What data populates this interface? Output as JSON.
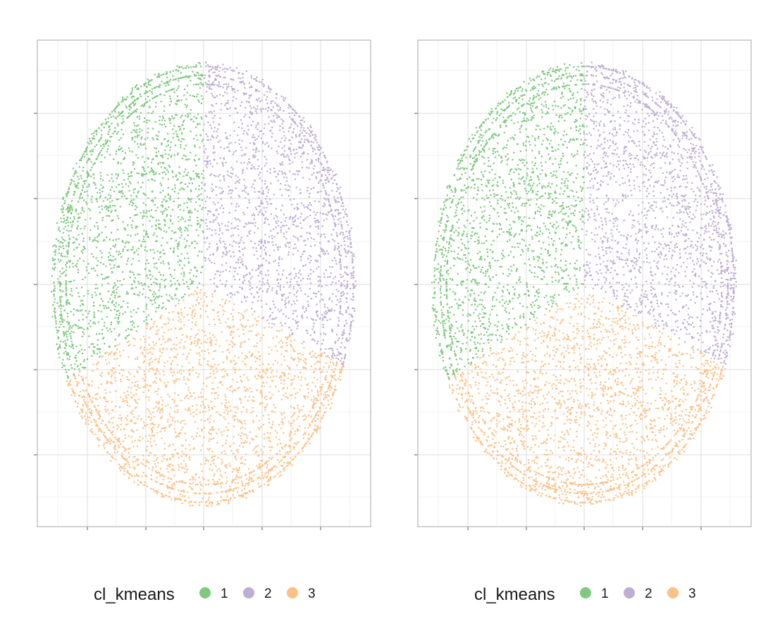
{
  "chart_data": [
    {
      "type": "scatter",
      "title": "",
      "xlabel": "",
      "ylabel": "",
      "grid": true,
      "axis_tick_labels_shown": false,
      "legend_position": "bottom",
      "legend": {
        "title": "cl_kmeans",
        "entries": [
          "1",
          "2",
          "3"
        ]
      },
      "shape": "ellipse",
      "center": [
        0,
        0
      ],
      "radii": [
        1,
        1.45
      ],
      "series": [
        {
          "name": "1",
          "color": "#7fc97f",
          "region": "left wedge, from 90° to 215° (angle from center)"
        },
        {
          "name": "2",
          "color": "#beaed4",
          "region": "right wedge, from -30° to 90°"
        },
        {
          "name": "3",
          "color": "#fdc086",
          "region": "bottom wedge, from 215° to 330°"
        }
      ]
    },
    {
      "type": "scatter",
      "title": "",
      "xlabel": "",
      "ylabel": "",
      "grid": true,
      "axis_tick_labels_shown": false,
      "legend_position": "bottom",
      "legend": {
        "title": "cl_kmeans",
        "entries": [
          "1",
          "2",
          "3"
        ]
      },
      "shape": "ellipse",
      "center": [
        0,
        0
      ],
      "radii": [
        1,
        1.45
      ],
      "series": [
        {
          "name": "1",
          "color": "#7fc97f",
          "region": "left wedge, from 90° to 215° (angle from center)"
        },
        {
          "name": "2",
          "color": "#beaed4",
          "region": "right wedge, from -30° to 90°"
        },
        {
          "name": "3",
          "color": "#fdc086",
          "region": "bottom wedge, from 215° to 330°"
        }
      ]
    }
  ]
}
